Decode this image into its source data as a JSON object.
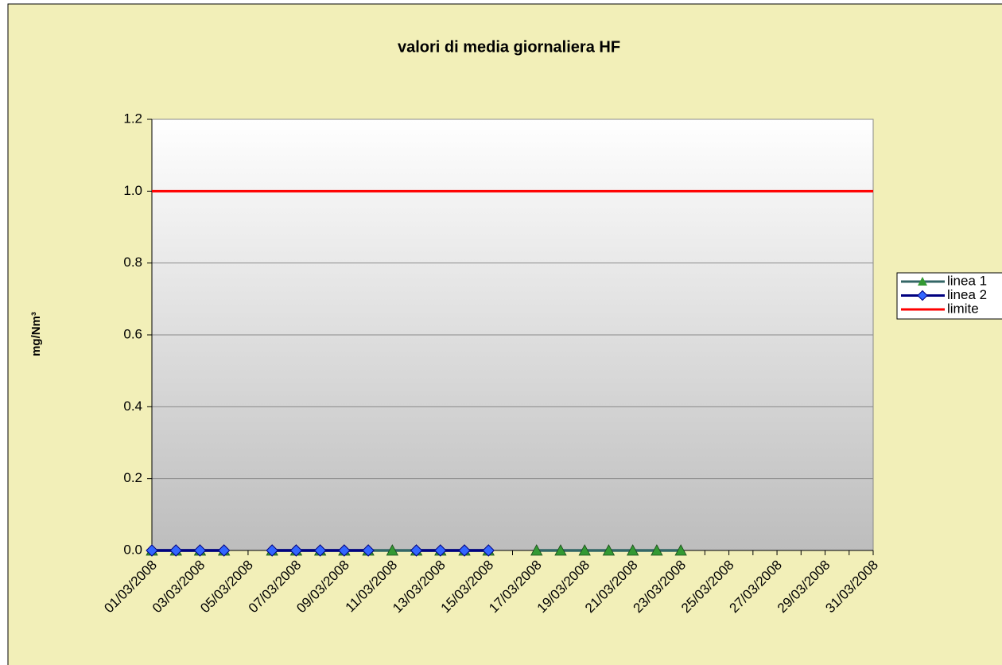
{
  "chart_data": {
    "type": "line",
    "title": "valori di media giornaliera  HF",
    "y_label": "mg/Nm³",
    "categories": [
      "01/03/2008",
      null,
      "03/03/2008",
      null,
      "05/03/2008",
      null,
      "07/03/2008",
      null,
      "09/03/2008",
      null,
      "11/03/2008",
      null,
      "13/03/2008",
      null,
      "15/03/2008",
      null,
      "17/03/2008",
      null,
      "19/03/2008",
      null,
      "21/03/2008",
      null,
      "23/03/2008",
      null,
      "25/03/2008",
      null,
      "27/03/2008",
      null,
      "29/03/2008",
      null,
      "31/03/2008"
    ],
    "series": [
      {
        "name": "linea 1",
        "color": "#336666",
        "marker_color": "#339933",
        "marker": "triangle",
        "values": [
          0,
          0,
          0,
          0,
          null,
          0,
          0,
          0,
          0,
          0,
          0,
          0,
          0,
          0,
          0,
          null,
          0,
          0,
          0,
          0,
          0,
          0,
          0,
          null,
          null,
          null,
          null,
          null,
          null,
          null,
          null
        ]
      },
      {
        "name": "linea 2",
        "color": "#000080",
        "marker_color": "#3366ff",
        "marker": "diamond",
        "values": [
          0,
          0,
          0,
          0,
          null,
          0,
          0,
          0,
          0,
          0,
          null,
          0,
          0,
          0,
          0,
          null,
          null,
          null,
          null,
          null,
          null,
          null,
          null,
          null,
          null,
          null,
          null,
          null,
          null,
          null,
          null
        ]
      },
      {
        "name": "limite",
        "color": "#ff0000",
        "marker": "none",
        "values": [
          1,
          1,
          1,
          1,
          1,
          1,
          1,
          1,
          1,
          1,
          1,
          1,
          1,
          1,
          1,
          1,
          1,
          1,
          1,
          1,
          1,
          1,
          1,
          1,
          1,
          1,
          1,
          1,
          1,
          1,
          1
        ]
      }
    ],
    "ylim": [
      0,
      1.2
    ],
    "yticks": [
      {
        "value": 0,
        "label": "0.0"
      },
      0.2,
      0.4,
      0.6,
      0.8,
      {
        "value": 1,
        "label": "1.0"
      },
      1.2
    ],
    "grid": true,
    "legend": "right"
  }
}
